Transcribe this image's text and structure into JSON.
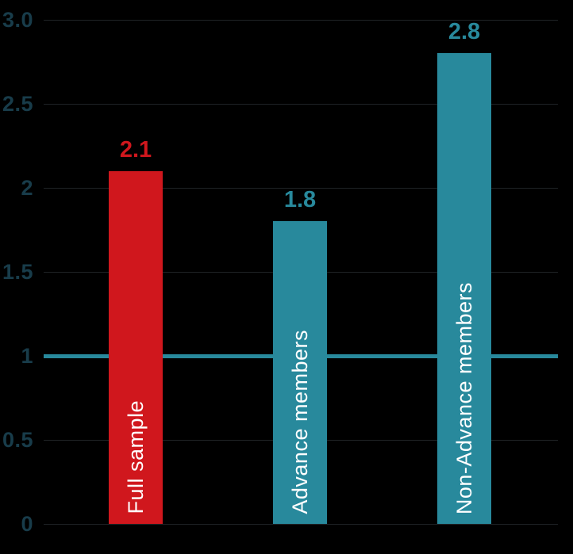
{
  "chart_data": {
    "type": "bar",
    "title": "",
    "xlabel": "",
    "ylabel": "",
    "categories": [
      "Full sample",
      "Advance members",
      "Non-Advance members"
    ],
    "values": [
      2.1,
      1.8,
      2.8
    ],
    "value_labels": [
      "2.1",
      "1.8",
      "2.8"
    ],
    "bar_color_roles": [
      "highlight",
      "default",
      "default"
    ],
    "ylim": [
      0,
      3
    ],
    "y_ticks": [
      {
        "label": "3.0",
        "value": 3.0
      },
      {
        "label": "2.5",
        "value": 2.5
      },
      {
        "label": "2",
        "value": 2.0
      },
      {
        "label": "1.5",
        "value": 1.5
      },
      {
        "label": "1",
        "value": 1.0
      },
      {
        "label": "0.5",
        "value": 0.5
      },
      {
        "label": "0",
        "value": 0.0
      }
    ],
    "reference_line": {
      "value": 1.0
    },
    "grid": "horizontal",
    "legend": "none",
    "value_label_position": "above-bar",
    "category_label_position": "inside-bar-bottom-vertical"
  },
  "colors": {
    "background": "#000000",
    "highlight_bar": "#d0171d",
    "default_bar": "#28899c",
    "tick_label": "#183c4a",
    "gridline": "#1f2326",
    "reference_line": "#28899c",
    "bar_label_text": "#ffffff"
  }
}
